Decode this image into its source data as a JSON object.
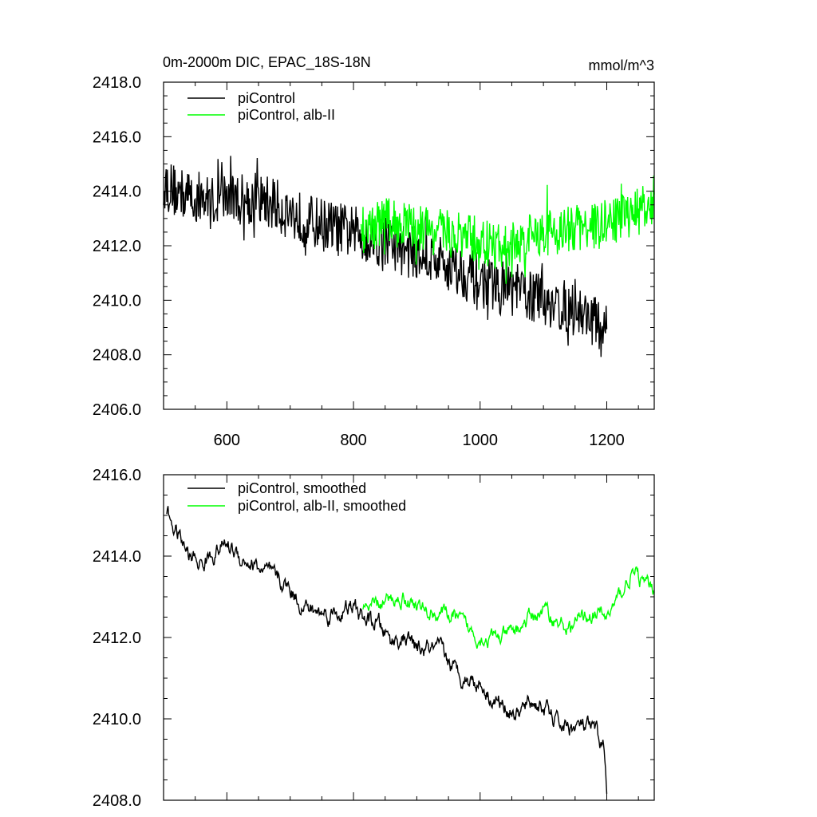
{
  "chart_data": [
    {
      "type": "line",
      "title": "0m-2000m DIC, EPAC_18S-18N",
      "units": "mmol/m^3",
      "xlim": [
        500,
        1275
      ],
      "ylim": [
        2406.0,
        2418.0
      ],
      "x_ticks": [
        600,
        800,
        1000,
        1200
      ],
      "y_ticks": [
        "2406.0",
        "2408.0",
        "2410.0",
        "2412.0",
        "2414.0",
        "2416.0",
        "2418.0"
      ],
      "grid": false,
      "legend_position": "top-left",
      "series": [
        {
          "name": "piControl",
          "color": "#000000",
          "x": [
            500,
            525,
            550,
            575,
            600,
            625,
            650,
            675,
            700,
            725,
            750,
            775,
            800,
            825,
            850,
            875,
            900,
            925,
            950,
            975,
            1000,
            1025,
            1050,
            1075,
            1100,
            1125,
            1150,
            1175,
            1200
          ],
          "y": [
            2414.3,
            2413.9,
            2413.8,
            2413.6,
            2413.8,
            2413.7,
            2413.7,
            2413.5,
            2413.2,
            2412.9,
            2412.8,
            2412.6,
            2412.5,
            2412.3,
            2412.2,
            2411.9,
            2411.7,
            2411.5,
            2411.3,
            2411.0,
            2410.7,
            2410.5,
            2410.4,
            2410.2,
            2410.0,
            2409.8,
            2409.6,
            2409.4,
            2408.6
          ],
          "noise": 1.0
        },
        {
          "name": "piControl, alb-II",
          "color": "#00ff00",
          "x": [
            812,
            850,
            900,
            950,
            1000,
            1025,
            1050,
            1100,
            1150,
            1200,
            1250,
            1275
          ],
          "y": [
            2412.6,
            2412.9,
            2412.7,
            2412.4,
            2412.2,
            2411.9,
            2412.0,
            2412.5,
            2412.6,
            2412.8,
            2413.3,
            2413.3
          ],
          "noise": 0.9
        }
      ]
    },
    {
      "type": "line",
      "title": "",
      "xlim": [
        500,
        1275
      ],
      "ylim": [
        2408.0,
        2416.0
      ],
      "y_ticks": [
        "2408.0",
        "2410.0",
        "2412.0",
        "2414.0",
        "2416.0"
      ],
      "grid": false,
      "legend_position": "top-left",
      "series": [
        {
          "name": "piControl, smoothed",
          "color": "#000000",
          "x": [
            505,
            520,
            540,
            560,
            580,
            600,
            620,
            640,
            660,
            680,
            700,
            720,
            740,
            760,
            780,
            800,
            820,
            840,
            860,
            880,
            900,
            920,
            940,
            960,
            980,
            1000,
            1020,
            1040,
            1060,
            1080,
            1100,
            1120,
            1140,
            1160,
            1180,
            1195,
            1200
          ],
          "y": [
            2415.1,
            2414.6,
            2414.0,
            2413.8,
            2414.1,
            2414.3,
            2414.0,
            2413.8,
            2413.6,
            2413.4,
            2413.2,
            2412.8,
            2412.6,
            2412.6,
            2412.6,
            2412.7,
            2412.4,
            2412.3,
            2411.9,
            2412.0,
            2411.7,
            2411.7,
            2411.6,
            2411.2,
            2411.0,
            2410.9,
            2410.5,
            2410.3,
            2410.1,
            2410.4,
            2410.3,
            2409.9,
            2409.8,
            2409.8,
            2409.7,
            2409.3,
            2408.4
          ],
          "noise": 0.35
        },
        {
          "name": "piControl, alb-II, smoothed",
          "color": "#00ff00",
          "x": [
            815,
            840,
            860,
            880,
            900,
            920,
            940,
            960,
            980,
            1000,
            1020,
            1040,
            1060,
            1080,
            1100,
            1120,
            1140,
            1160,
            1180,
            1200,
            1220,
            1240,
            1260,
            1275
          ],
          "y": [
            2412.6,
            2412.8,
            2412.9,
            2413.0,
            2412.8,
            2412.6,
            2412.6,
            2412.5,
            2412.2,
            2412.0,
            2412.0,
            2412.0,
            2412.2,
            2412.5,
            2412.7,
            2412.4,
            2412.2,
            2412.5,
            2412.6,
            2412.5,
            2413.0,
            2413.6,
            2413.3,
            2413.2
          ],
          "noise": 0.3
        }
      ]
    }
  ]
}
